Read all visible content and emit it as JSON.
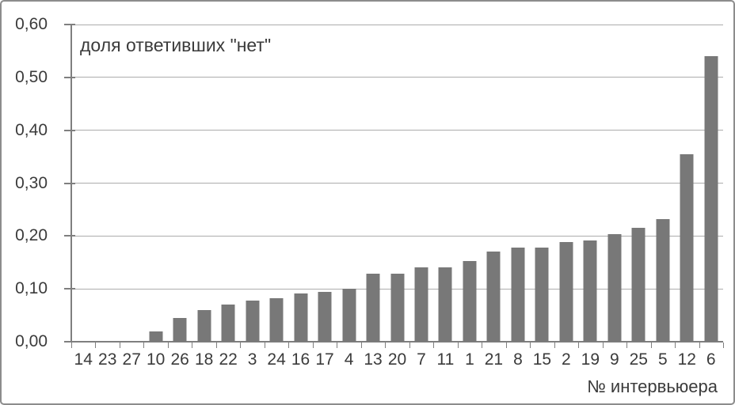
{
  "chart_data": {
    "type": "bar",
    "title": "доля ответивших \"нет\"",
    "xlabel": "№ интервьюера",
    "ylabel": "",
    "categories": [
      "14",
      "23",
      "27",
      "10",
      "26",
      "18",
      "22",
      "3",
      "24",
      "16",
      "17",
      "4",
      "13",
      "20",
      "7",
      "11",
      "1",
      "21",
      "8",
      "15",
      "2",
      "19",
      "9",
      "25",
      "5",
      "12",
      "6"
    ],
    "values": [
      0,
      0,
      0,
      0.02,
      0.045,
      0.06,
      0.07,
      0.078,
      0.083,
      0.091,
      0.094,
      0.1,
      0.128,
      0.128,
      0.14,
      0.14,
      0.152,
      0.17,
      0.178,
      0.178,
      0.188,
      0.192,
      0.203,
      0.215,
      0.232,
      0.355,
      0.54
    ],
    "ylim": [
      0,
      0.6
    ],
    "y_ticks": [
      {
        "label": "0,00",
        "value": 0.0
      },
      {
        "label": "0,10",
        "value": 0.1
      },
      {
        "label": "0,20",
        "value": 0.2
      },
      {
        "label": "0,30",
        "value": 0.3
      },
      {
        "label": "0,40",
        "value": 0.4
      },
      {
        "label": "0,50",
        "value": 0.5
      },
      {
        "label": "0,60",
        "value": 0.6
      }
    ],
    "grid": true,
    "legend": null,
    "bar_color": "#787878",
    "gridline_color": "#acacac",
    "axis_color": "#7f7f7f",
    "text_color": "#3b3b3b"
  }
}
